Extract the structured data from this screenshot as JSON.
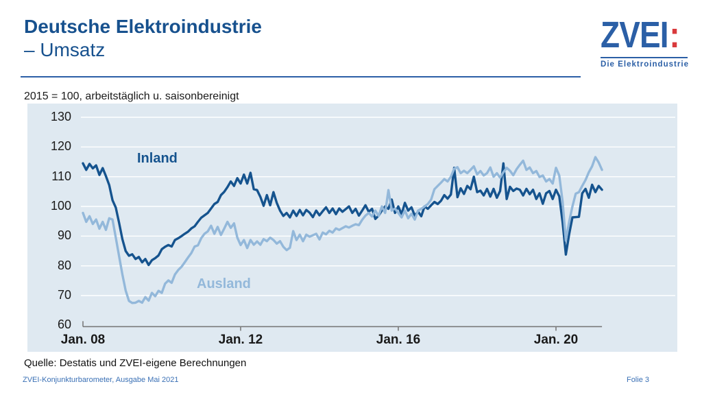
{
  "header": {
    "title_line1": "Deutsche Elektroindustrie",
    "title_line2": "– Umsatz",
    "logo": {
      "wordmark": "ZVEI",
      "colon": ":",
      "caption": "Die Elektroindustrie"
    }
  },
  "subtitle": "2015 = 100, arbeitstäglich u. saisonbereinigt",
  "footer": {
    "source": "Quelle: Destatis und ZVEI-eigene Berechnungen",
    "publication": "ZVEI-Konjunkturbarometer, Ausgabe Mai 2021",
    "slide": "Folie 3"
  },
  "colors": {
    "title_blue": "#17518e",
    "logo_blue": "#2b5fa6",
    "logo_red": "#d93a3c",
    "inland": "#15538e",
    "ausland": "#93b8da",
    "chart_bg": "#dfe9f1",
    "gridline": "#ffffff",
    "axis_gray": "#7a7a7a",
    "footer_blue": "#3a70b5"
  },
  "chart_data": {
    "type": "line",
    "title": "Deutsche Elektroindustrie – Umsatz",
    "note": "2015 = 100, arbeitstäglich u. saisonbereinigt",
    "x_start": "2008-01",
    "x_interval": "monthly",
    "x_ticks": [
      {
        "label": "Jan. 08",
        "month": 0
      },
      {
        "label": "Jan. 12",
        "month": 48
      },
      {
        "label": "Jan. 16",
        "month": 96
      },
      {
        "label": "Jan. 20",
        "month": 144
      }
    ],
    "y_ticks": [
      130,
      120,
      110,
      100,
      90,
      80,
      70,
      60
    ],
    "ylim": [
      60,
      130
    ],
    "grid": "horizontal-white",
    "legend_position": "inline-labels",
    "series": [
      {
        "name": "Inland",
        "color": "#15538e",
        "values": [
          114.5,
          112.3,
          114.3,
          112.8,
          113.8,
          110.6,
          112.9,
          110.2,
          107.2,
          102.1,
          99.6,
          94.5,
          89,
          85,
          83.4,
          83.9,
          82.3,
          83,
          81.2,
          82.3,
          80.3,
          81.9,
          82.6,
          83.5,
          85.6,
          86.4,
          87,
          86.5,
          88.7,
          89.3,
          90,
          90.8,
          91.5,
          92.6,
          93.3,
          94.8,
          96.2,
          97,
          97.8,
          99.3,
          100.8,
          101.5,
          103.8,
          104.9,
          106.5,
          108.4,
          106.9,
          109.5,
          107.7,
          110.7,
          107.7,
          111.3,
          105.8,
          105.5,
          103.2,
          100.2,
          103.8,
          100.4,
          104.8,
          101.2,
          98.6,
          96.8,
          97.8,
          96.3,
          98.6,
          96.8,
          98.8,
          97,
          98.8,
          97.9,
          96.4,
          98.6,
          97,
          98.4,
          99.7,
          97.8,
          99.3,
          97.4,
          99.3,
          98.2,
          99.1,
          100,
          97.8,
          99.2,
          96.9,
          98.6,
          100.4,
          98.2,
          99.2,
          95.8,
          96.9,
          98.6,
          100,
          99.2,
          102.3,
          97.8,
          100,
          97.4,
          101.2,
          98.6,
          99.7,
          96.9,
          98.2,
          96.7,
          100,
          99.2,
          100.4,
          101.5,
          100.8,
          101.9,
          103.8,
          102.6,
          104,
          113,
          103.1,
          106.1,
          104.2,
          106.9,
          105.8,
          110,
          104.8,
          105.3,
          103.7,
          105.9,
          103.3,
          105.9,
          102.9,
          105.2,
          114.5,
          102.5,
          106.6,
          105.2,
          106,
          105.6,
          103.7,
          105.9,
          104.1,
          105.6,
          102.5,
          104.4,
          100.9,
          104.4,
          105.2,
          102.5,
          105.6,
          103.4,
          94.8,
          83.8,
          90.6,
          96.3,
          96.4,
          96.5,
          104.4,
          105.9,
          102.9,
          107.3,
          104.8,
          106.9,
          105.6
        ]
      },
      {
        "name": "Ausland",
        "color": "#93b8da",
        "values": [
          97.8,
          94.8,
          96.7,
          94.1,
          95.6,
          92.5,
          94.8,
          92.1,
          96,
          95.6,
          89.5,
          83.3,
          77.1,
          71.7,
          68.2,
          67.5,
          67.6,
          68.2,
          67.6,
          69.5,
          68.3,
          70.9,
          69.8,
          71.6,
          70.9,
          74,
          75.1,
          74.3,
          77.1,
          78.6,
          79.7,
          81.2,
          82.8,
          84.3,
          86.5,
          86.9,
          89.3,
          90.8,
          91.6,
          93.5,
          90.8,
          93.1,
          90.4,
          92.5,
          94.8,
          92.8,
          94.3,
          89.5,
          87,
          88.7,
          86,
          88.7,
          87.1,
          88.2,
          87.1,
          89,
          88.3,
          89.5,
          88.7,
          87.5,
          88.3,
          86.4,
          85.3,
          86.1,
          91.7,
          88.7,
          90.5,
          88.3,
          90.5,
          89.8,
          90.3,
          90.8,
          88.9,
          91.2,
          90.6,
          91.8,
          91.2,
          92.6,
          92.1,
          92.7,
          93.3,
          92.9,
          93.5,
          94,
          93.7,
          95.5,
          96.9,
          97.8,
          96.6,
          98.6,
          96.8,
          100,
          97.8,
          105.5,
          98.6,
          99.3,
          97.8,
          96.3,
          98.6,
          96,
          97.5,
          95.6,
          98.6,
          99.2,
          100,
          100.8,
          102.3,
          105.8,
          106.9,
          108,
          109.2,
          108.4,
          110,
          112.7,
          113.2,
          111.2,
          112,
          111.2,
          112.3,
          113.5,
          110.8,
          111.9,
          110.4,
          111.2,
          113.1,
          110,
          111.2,
          109.7,
          111.5,
          113,
          112,
          110.5,
          112.5,
          114,
          115.4,
          112.3,
          113.1,
          111.2,
          111.9,
          109.9,
          110.4,
          108.4,
          109.2,
          107.7,
          113,
          110.4,
          101.7,
          88.5,
          94.8,
          100,
          104.3,
          104.8,
          106.9,
          108.9,
          111.5,
          113.5,
          116.6,
          114.8,
          112.3
        ]
      }
    ]
  }
}
